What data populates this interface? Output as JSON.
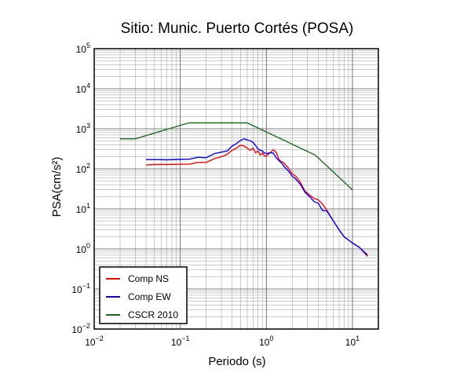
{
  "chart_data": {
    "type": "line",
    "title": "Sitio: Munic. Puerto Cortés (POSA)",
    "xlabel": "Periodo (s)",
    "ylabel": "PSA(cm/s²)",
    "xscale": "log",
    "yscale": "log",
    "xlim": [
      0.01,
      20
    ],
    "ylim": [
      0.01,
      100000
    ],
    "grid": true,
    "legend_position": "bottom-left",
    "x_ticks": [
      {
        "base": "10",
        "exp": "−2",
        "value": 0.01
      },
      {
        "base": "10",
        "exp": "−1",
        "value": 0.1
      },
      {
        "base": "10",
        "exp": "0",
        "value": 1
      },
      {
        "base": "10",
        "exp": "1",
        "value": 10
      }
    ],
    "y_ticks": [
      {
        "base": "10",
        "exp": "−2",
        "value": 0.01
      },
      {
        "base": "10",
        "exp": "−1",
        "value": 0.1
      },
      {
        "base": "10",
        "exp": "0",
        "value": 1
      },
      {
        "base": "10",
        "exp": "1",
        "value": 10
      },
      {
        "base": "10",
        "exp": "2",
        "value": 100
      },
      {
        "base": "10",
        "exp": "3",
        "value": 1000
      },
      {
        "base": "10",
        "exp": "4",
        "value": 10000
      },
      {
        "base": "10",
        "exp": "5",
        "value": 100000
      }
    ],
    "series": [
      {
        "name": "Comp NS",
        "color": "#ff0000",
        "x": [
          0.04,
          0.05,
          0.07,
          0.1,
          0.13,
          0.16,
          0.2,
          0.25,
          0.3,
          0.35,
          0.4,
          0.45,
          0.5,
          0.55,
          0.6,
          0.65,
          0.7,
          0.75,
          0.8,
          0.85,
          0.9,
          0.95,
          1.0,
          1.1,
          1.2,
          1.3,
          1.4,
          1.5,
          1.6,
          1.7,
          1.8,
          2.0,
          2.2,
          2.5,
          2.8,
          3.2,
          3.6,
          4.0,
          4.5,
          5.0,
          6.0,
          7.0,
          8.0,
          10.0,
          12.0,
          15.0
        ],
        "y": [
          125,
          128,
          128,
          130,
          132,
          145,
          145,
          180,
          200,
          230,
          290,
          330,
          390,
          370,
          330,
          290,
          330,
          250,
          280,
          220,
          250,
          210,
          210,
          250,
          300,
          260,
          170,
          150,
          140,
          120,
          105,
          75,
          65,
          45,
          28,
          22,
          18,
          17,
          13,
          9.5,
          5,
          3,
          2,
          1.4,
          1.1,
          0.65
        ]
      },
      {
        "name": "Comp EW",
        "color": "#0000ff",
        "x": [
          0.04,
          0.05,
          0.07,
          0.1,
          0.13,
          0.16,
          0.2,
          0.25,
          0.3,
          0.35,
          0.4,
          0.45,
          0.5,
          0.55,
          0.6,
          0.65,
          0.7,
          0.75,
          0.8,
          0.85,
          0.9,
          0.95,
          1.0,
          1.1,
          1.2,
          1.3,
          1.4,
          1.5,
          1.6,
          1.7,
          1.8,
          2.0,
          2.2,
          2.5,
          2.8,
          3.2,
          3.6,
          4.0,
          4.5,
          5.0,
          6.0,
          7.0,
          8.0,
          10.0,
          12.0,
          15.0
        ],
        "y": [
          170,
          170,
          168,
          172,
          175,
          195,
          190,
          240,
          260,
          280,
          370,
          430,
          510,
          560,
          530,
          500,
          460,
          380,
          310,
          290,
          280,
          250,
          240,
          250,
          250,
          190,
          160,
          140,
          115,
          100,
          90,
          65,
          55,
          40,
          26,
          20,
          15,
          14,
          9,
          9,
          5,
          3,
          2,
          1.4,
          1.1,
          0.7
        ]
      },
      {
        "name": "CSCR 2010",
        "color": "#1a6b1a",
        "x": [
          0.02,
          0.03,
          0.125,
          0.6,
          3.7,
          10.0
        ],
        "y": [
          560,
          560,
          1400,
          1400,
          220,
          30
        ]
      }
    ]
  }
}
